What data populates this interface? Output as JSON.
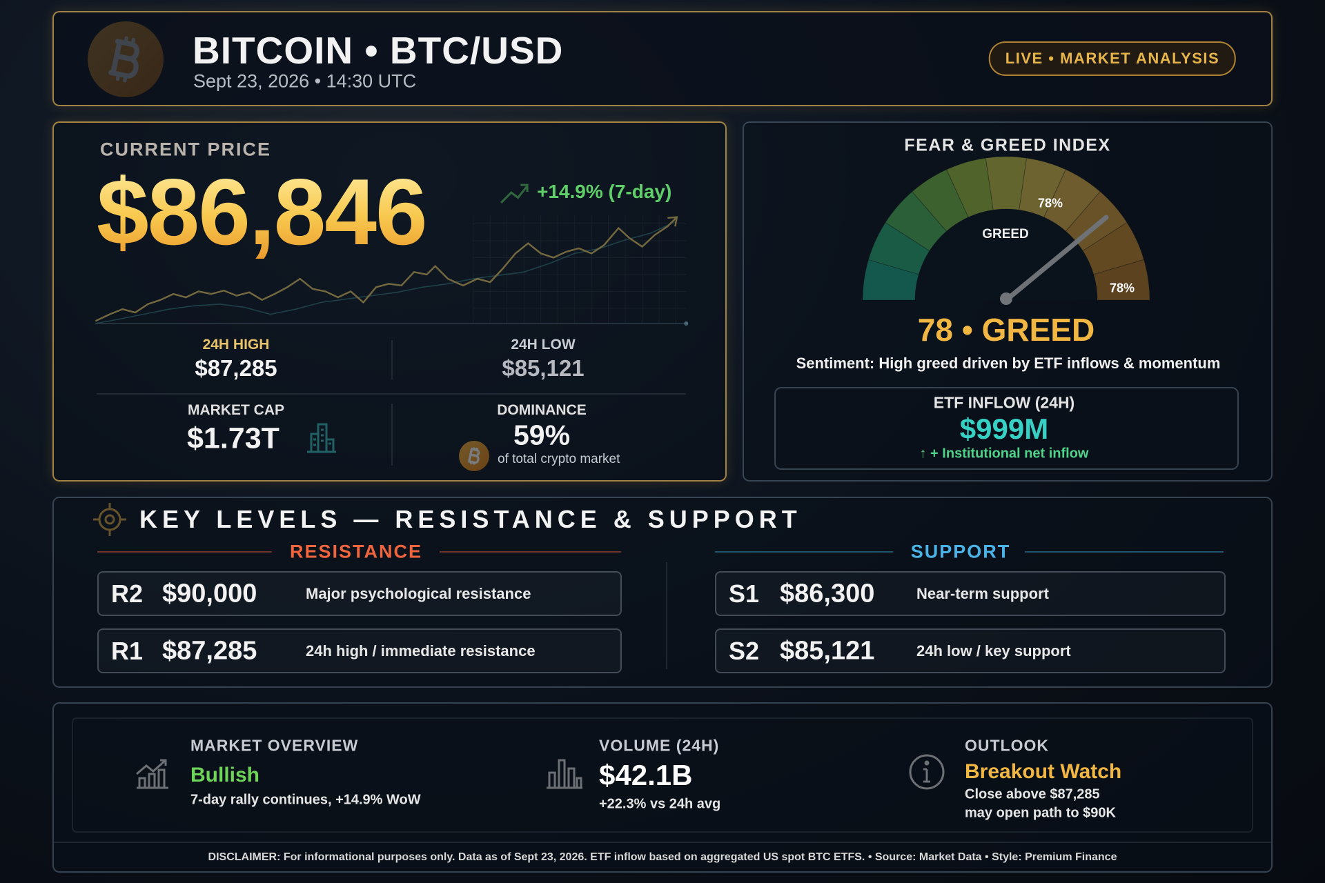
{
  "header": {
    "title": "BITCOIN • BTC/USD",
    "datetime": "Sept 23, 2026 • 14:30 UTC",
    "badge": "LIVE • MARKET ANALYSIS"
  },
  "price": {
    "label": "CURRENT PRICE",
    "value": "$86,846",
    "change": "+14.9% (7-day)",
    "high": {
      "label": "24H HIGH",
      "value": "$87,285"
    },
    "low": {
      "label": "24H LOW",
      "value": "$85,121"
    },
    "market_cap": {
      "label": "MARKET CAP",
      "value": "$1.73T"
    },
    "dominance": {
      "label": "DOMINANCE",
      "value": "59%",
      "note": "of total crypto market"
    }
  },
  "gauge": {
    "title": "FEAR & GREED INDEX",
    "value": 78,
    "zone": "GREED",
    "marker_labels": [
      "78%",
      "78%"
    ],
    "headline": "78 • GREED",
    "sentiment": "Sentiment: High greed driven by ETF inflows & momentum"
  },
  "etf": {
    "label": "ETF INFLOW (24H)",
    "value": "$999M",
    "note": "↑ + Institutional net inflow"
  },
  "levels": {
    "title": "KEY LEVELS — RESISTANCE & SUPPORT",
    "resistance": {
      "label": "RESISTANCE",
      "rows": [
        {
          "code": "R2",
          "price": "$90,000",
          "note": "Major psychological resistance"
        },
        {
          "code": "R1",
          "price": "$87,285",
          "note": "24h high / immediate resistance"
        }
      ]
    },
    "support": {
      "label": "SUPPORT",
      "rows": [
        {
          "code": "S1",
          "price": "$86,300",
          "note": "Near-term support"
        },
        {
          "code": "S2",
          "price": "$85,121",
          "note": "24h low / key support"
        }
      ]
    }
  },
  "summary": {
    "items": [
      {
        "label": "MARKET OVERVIEW",
        "headline": "Bullish",
        "lines": [
          "7-day rally continues, +14.9% WoW"
        ]
      },
      {
        "label": "VOLUME (24H)",
        "headline": "$42.1B",
        "lines": [
          "+22.3% vs 24h avg"
        ]
      },
      {
        "label": "OUTLOOK",
        "headline": "Breakout Watch",
        "lines": [
          "Close above $87,285",
          "may open path to $90K"
        ]
      }
    ],
    "disclaimer": "DISCLAIMER: For informational purposes only. Data as of Sept 23, 2026. ETF inflow based on aggregated US spot BTC ETFS.  •  Source: Market Data  •  Style: Premium Finance"
  }
}
